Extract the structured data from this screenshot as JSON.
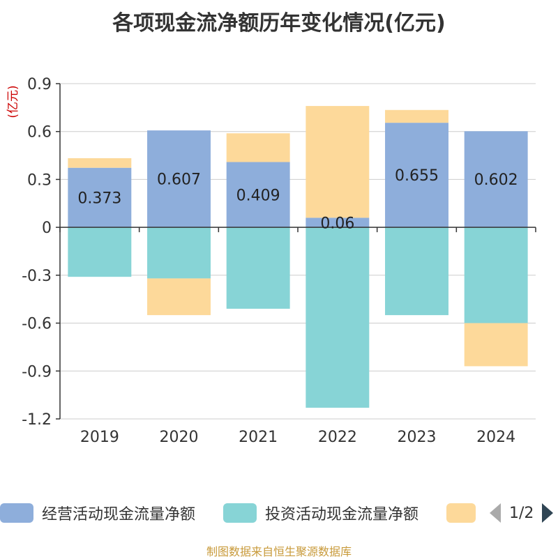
{
  "title": "各项现金流净额历年变化情况(亿元)",
  "source_note": "制图数据来自恒生聚源数据库",
  "legend_pager": "1/2",
  "chart_data": {
    "type": "bar",
    "stacked": true,
    "title": "各项现金流净额历年变化情况(亿元)",
    "ylabel": "(亿元)",
    "categories": [
      "2019",
      "2020",
      "2021",
      "2022",
      "2023",
      "2024"
    ],
    "ylim": [
      -1.2,
      0.9
    ],
    "yticks": [
      "0.9",
      "0.6",
      "0.3",
      "0",
      "-0.3",
      "-0.6",
      "-0.9",
      "-1.2"
    ],
    "grid": true,
    "legend_position": "bottom",
    "series": [
      {
        "name": "经营活动现金流量净额",
        "color": "#8eaedb",
        "values": [
          0.373,
          0.607,
          0.409,
          0.06,
          0.655,
          0.602
        ],
        "labels": [
          "0.373",
          "0.607",
          "0.409",
          "0.06",
          "0.655",
          "0.602"
        ]
      },
      {
        "name": "投资活动现金流量净额",
        "color": "#87d4d6",
        "values": [
          -0.31,
          -0.32,
          -0.51,
          -1.13,
          -0.55,
          -0.6
        ]
      },
      {
        "name": "",
        "color": "#fdd99a",
        "values": [
          0.06,
          -0.23,
          0.18,
          0.7,
          0.08,
          -0.27
        ]
      }
    ]
  }
}
